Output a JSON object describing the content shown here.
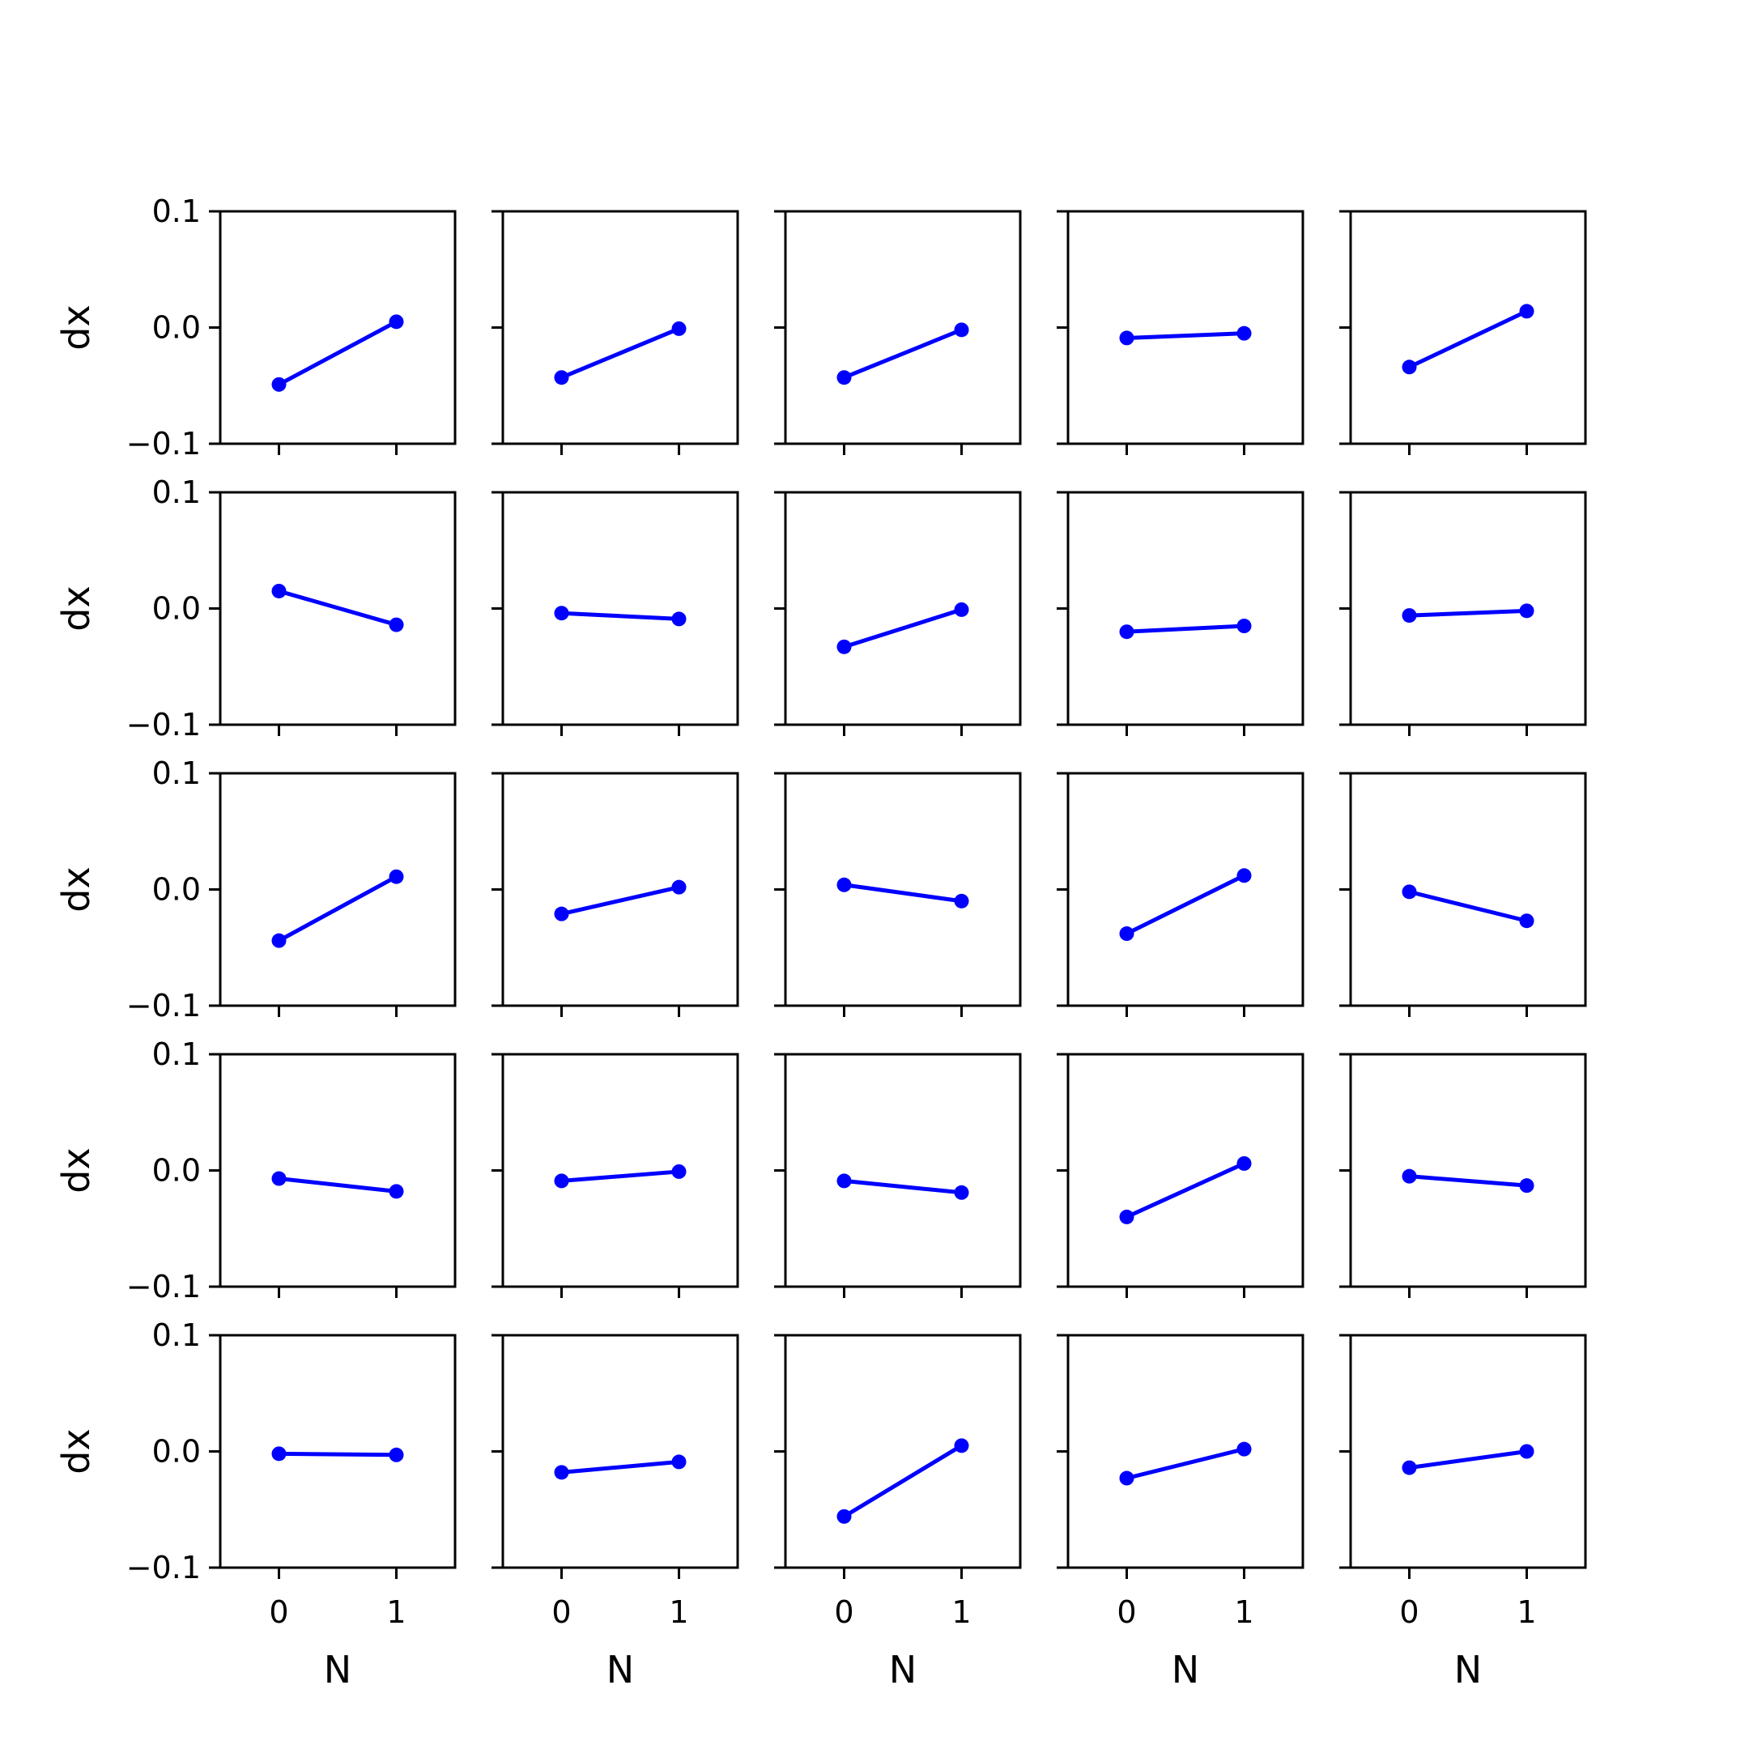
{
  "chart_data": {
    "type": "line",
    "layout": {
      "rows": 5,
      "cols": 5
    },
    "line_color": "#0000ff",
    "xlabel": "N",
    "ylabel": "dx",
    "x": [
      0,
      1
    ],
    "x_ticks": [
      "0",
      "1"
    ],
    "xlim": [
      -0.5,
      1.5
    ],
    "ylim": [
      -0.1,
      0.1
    ],
    "y_ticks": [
      "−0.1",
      "0.0",
      "0.1"
    ],
    "y_tick_values": [
      -0.1,
      0.0,
      0.1
    ],
    "panels": [
      [
        [
          -0.049,
          0.005
        ],
        [
          -0.043,
          -0.001
        ],
        [
          -0.043,
          -0.002
        ],
        [
          -0.009,
          -0.005
        ],
        [
          -0.034,
          0.014
        ]
      ],
      [
        [
          0.015,
          -0.014
        ],
        [
          -0.004,
          -0.009
        ],
        [
          -0.033,
          -0.001
        ],
        [
          -0.02,
          -0.015
        ],
        [
          -0.006,
          -0.002
        ]
      ],
      [
        [
          -0.044,
          0.011
        ],
        [
          -0.021,
          0.002
        ],
        [
          0.004,
          -0.01
        ],
        [
          -0.038,
          0.012
        ],
        [
          -0.002,
          -0.027
        ]
      ],
      [
        [
          -0.007,
          -0.018
        ],
        [
          -0.009,
          -0.001
        ],
        [
          -0.009,
          -0.019
        ],
        [
          -0.04,
          0.006
        ],
        [
          -0.005,
          -0.013
        ]
      ],
      [
        [
          -0.002,
          -0.003
        ],
        [
          -0.018,
          -0.009
        ],
        [
          -0.056,
          0.005
        ],
        [
          -0.023,
          0.002
        ],
        [
          -0.014,
          0.0
        ]
      ]
    ]
  }
}
